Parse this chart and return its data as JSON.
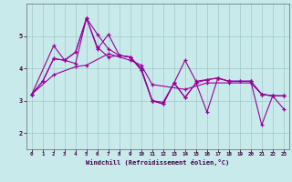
{
  "background_color": "#c8eaeb",
  "grid_color": "#a0c8c8",
  "line_color": "#990099",
  "xlabel": "Windchill (Refroidissement éolien,°C)",
  "xlim": [
    -0.5,
    23.5
  ],
  "ylim": [
    1.5,
    6.0
  ],
  "yticks": [
    2,
    3,
    4,
    5
  ],
  "xticks": [
    0,
    1,
    2,
    3,
    4,
    5,
    6,
    7,
    8,
    9,
    10,
    11,
    12,
    13,
    14,
    15,
    16,
    17,
    18,
    19,
    20,
    21,
    22,
    23
  ],
  "series1_x": [
    0,
    1,
    2,
    3,
    4,
    5,
    6,
    7,
    8,
    9,
    10,
    11,
    12,
    13,
    14,
    15,
    16,
    17,
    18,
    19,
    20,
    21,
    22,
    23
  ],
  "series1_y": [
    3.2,
    3.6,
    4.3,
    4.25,
    4.5,
    5.55,
    4.6,
    5.05,
    4.4,
    4.35,
    4.0,
    3.0,
    2.95,
    3.55,
    4.25,
    3.6,
    3.65,
    3.7,
    3.6,
    3.6,
    3.6,
    3.2,
    3.15,
    3.15
  ],
  "series2_x": [
    0,
    2,
    3,
    4,
    5,
    6,
    7,
    8,
    9,
    10,
    11,
    12,
    13,
    14,
    15,
    16,
    17,
    18,
    20,
    21,
    22,
    23
  ],
  "series2_y": [
    3.2,
    4.7,
    4.25,
    4.5,
    5.55,
    4.65,
    4.35,
    4.4,
    4.35,
    3.95,
    3.0,
    2.9,
    3.55,
    3.1,
    3.55,
    3.65,
    3.7,
    3.6,
    3.6,
    3.2,
    3.15,
    3.15
  ],
  "series3_x": [
    0,
    1,
    2,
    3,
    4,
    5,
    6,
    7,
    8,
    9,
    10,
    11,
    12,
    13,
    14,
    15,
    16,
    17,
    18,
    19,
    20,
    21,
    22,
    23
  ],
  "series3_y": [
    3.2,
    3.6,
    4.3,
    4.25,
    4.15,
    5.55,
    5.05,
    4.6,
    4.4,
    4.35,
    3.95,
    3.0,
    2.9,
    3.55,
    3.1,
    3.55,
    2.65,
    3.7,
    3.6,
    3.6,
    3.6,
    2.25,
    3.15,
    2.75
  ],
  "series4_x": [
    0,
    2,
    4,
    5,
    7,
    9,
    10,
    11,
    14,
    16,
    18,
    20,
    21,
    22,
    23
  ],
  "series4_y": [
    3.2,
    3.8,
    4.05,
    4.1,
    4.45,
    4.25,
    4.1,
    3.5,
    3.35,
    3.55,
    3.55,
    3.55,
    3.2,
    3.15,
    3.15
  ]
}
